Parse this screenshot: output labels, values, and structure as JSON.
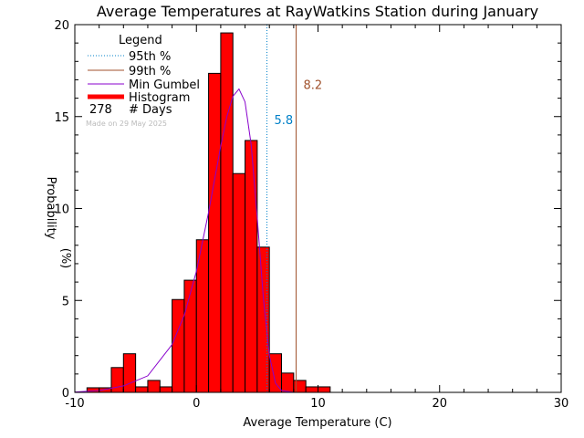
{
  "chart_data": {
    "type": "bar",
    "title": "Average Temperatures at RayWatkins Station during January",
    "xlabel": "Average Temperature (C)",
    "ylabel": "Probability",
    "ylabel_unit": "(%)",
    "xlim": [
      -10,
      30
    ],
    "ylim": [
      0,
      20
    ],
    "x_ticks": [
      -10,
      0,
      10,
      20,
      30
    ],
    "y_ticks": [
      0,
      5,
      10,
      15,
      20
    ],
    "bin_width": 1,
    "bin_lefts": [
      -9,
      -8,
      -7,
      -6,
      -5,
      -4,
      -3,
      -2,
      -1,
      0,
      1,
      2,
      3,
      4,
      5,
      6,
      7,
      8,
      9,
      10
    ],
    "histogram_values": [
      0.25,
      0.25,
      1.35,
      2.1,
      0.3,
      0.65,
      0.3,
      5.05,
      6.1,
      8.3,
      17.35,
      19.55,
      11.9,
      13.7,
      7.9,
      2.1,
      1.05,
      0.65,
      0.3,
      0.3
    ],
    "gumbel_curve": {
      "x": [
        -10,
        -8,
        -6,
        -4,
        -2,
        -1,
        0,
        1,
        2,
        2.5,
        3,
        3.5,
        4,
        4.5,
        5,
        5.5,
        6,
        6.5,
        7,
        8
      ],
      "y": [
        0.02,
        0.1,
        0.35,
        0.9,
        2.6,
        4.2,
        6.6,
        9.8,
        13.4,
        15.0,
        16.1,
        16.5,
        15.8,
        13.5,
        9.5,
        5.2,
        2.0,
        0.5,
        0.1,
        0.0
      ]
    },
    "percentile_95": 5.8,
    "percentile_99": 8.2,
    "percentile_95_label": "5.8",
    "percentile_99_label": "8.2",
    "colors": {
      "histogram": "#ff0000",
      "gumbel": "#8800cc",
      "p95": "#0080c8",
      "p99": "#a0522d"
    },
    "legend": {
      "title": "Legend",
      "placement": "top-left",
      "items": [
        {
          "label": "95th %",
          "style": "dotted",
          "color": "#0080c8"
        },
        {
          "label": "99th %",
          "style": "solid",
          "color": "#a0522d"
        },
        {
          "label": "Min Gumbel",
          "style": "solid",
          "color": "#8800cc"
        },
        {
          "label": "Histogram",
          "style": "thick",
          "color": "#ff0000"
        }
      ],
      "days_count": "278",
      "days_label": "# Days"
    },
    "made_on": "Made on 29 May 2025"
  }
}
